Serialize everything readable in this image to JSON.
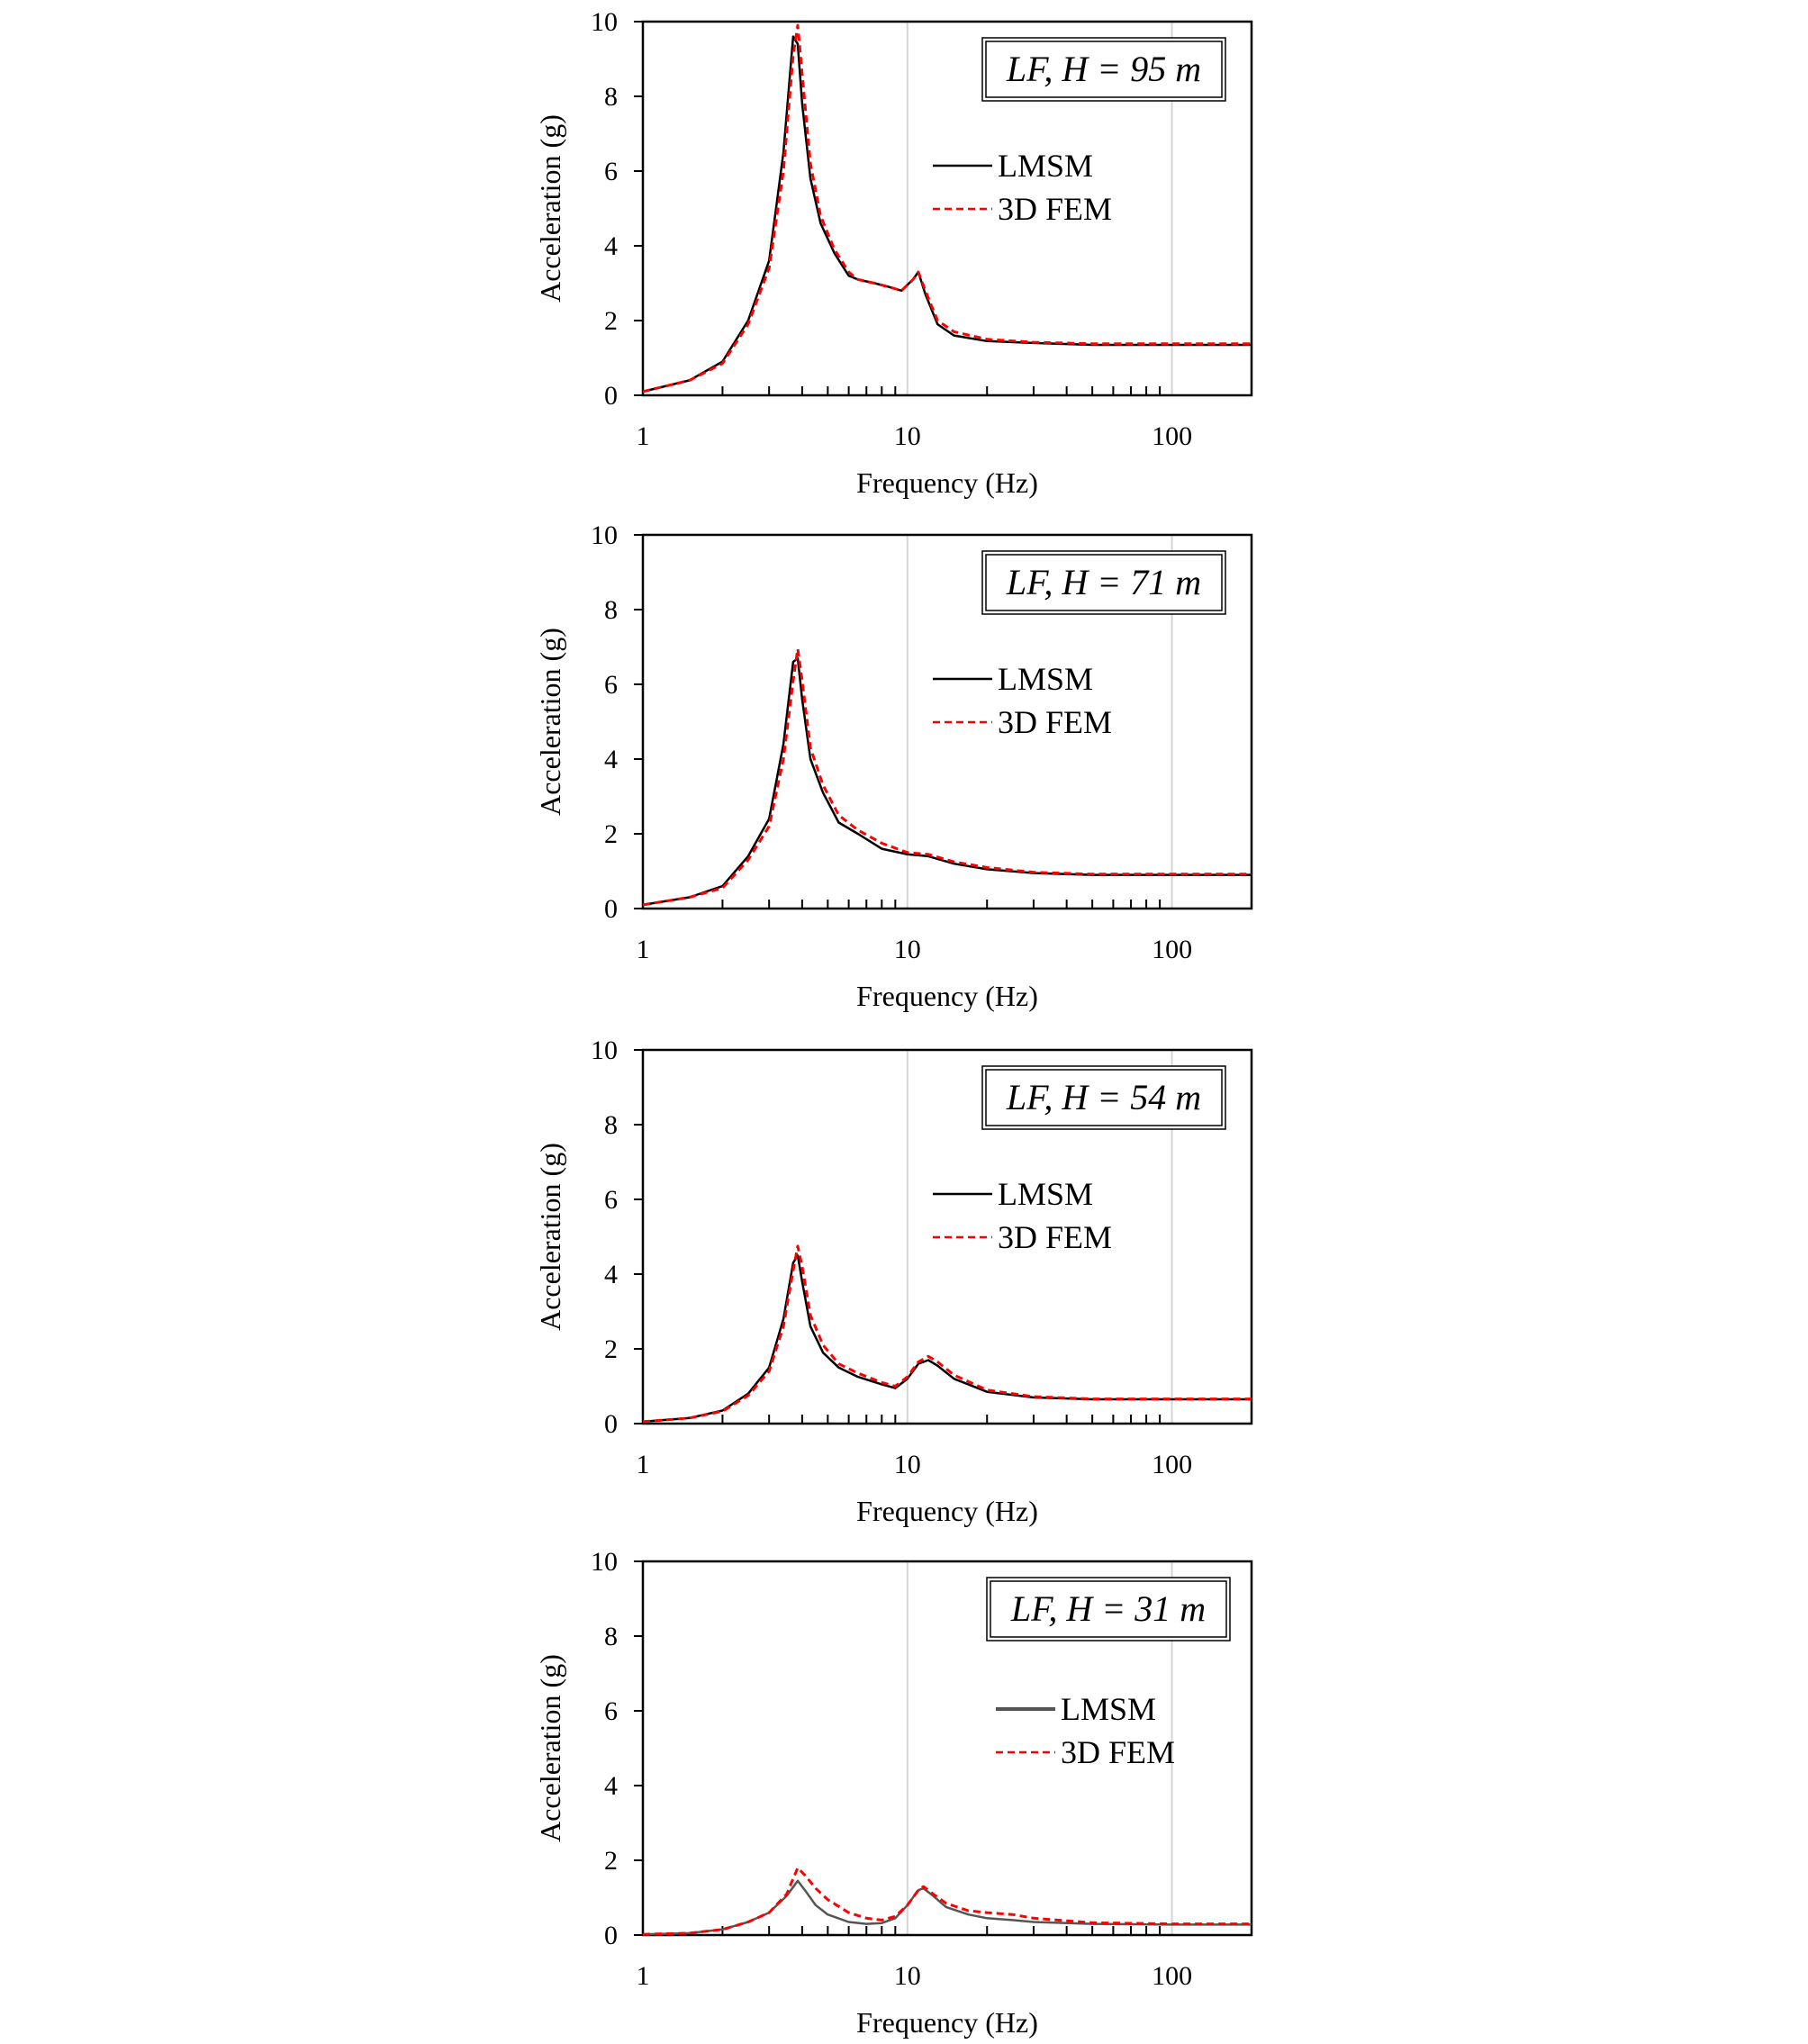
{
  "chart_data": [
    {
      "type": "line",
      "annotation": "LF, H = 95 m",
      "xlabel": "Frequency (Hz)",
      "ylabel": "Acceleration (g)",
      "xscale": "log",
      "xlim": [
        1,
        200
      ],
      "ylim": [
        0,
        10
      ],
      "xticks": [
        1,
        10,
        100
      ],
      "xtick_labels": [
        "1",
        "10",
        "100"
      ],
      "yticks": [
        0,
        2,
        4,
        6,
        8,
        10
      ],
      "ytick_labels": [
        "0",
        "2",
        "4",
        "6",
        "8",
        "10"
      ],
      "legend_position": "right-middle-upper",
      "series": [
        {
          "name": "LMSM",
          "color": "#000000",
          "style": "solid",
          "x": [
            1,
            1.5,
            2,
            2.5,
            3,
            3.4,
            3.7,
            3.85,
            4.0,
            4.3,
            4.7,
            5.3,
            6,
            6.5,
            7.5,
            8.5,
            9.5,
            10.5,
            11,
            11.7,
            13,
            15,
            20,
            30,
            50,
            100,
            200
          ],
          "y": [
            0.1,
            0.4,
            0.9,
            2.0,
            3.6,
            6.5,
            9.6,
            9.4,
            7.8,
            5.8,
            4.6,
            3.8,
            3.2,
            3.1,
            3.0,
            2.9,
            2.8,
            3.1,
            3.3,
            2.7,
            1.9,
            1.6,
            1.45,
            1.4,
            1.35,
            1.35,
            1.35
          ]
        },
        {
          "name": "3D FEM",
          "color": "#ff0000",
          "style": "dashed",
          "x": [
            1,
            1.5,
            2,
            2.5,
            3,
            3.4,
            3.7,
            3.85,
            4.0,
            4.3,
            4.7,
            5.3,
            6,
            6.5,
            7.5,
            8.5,
            9.5,
            10.5,
            11,
            11.7,
            13,
            15,
            20,
            30,
            50,
            100,
            200
          ],
          "y": [
            0.1,
            0.4,
            0.85,
            1.9,
            3.4,
            6.0,
            9.1,
            9.9,
            8.6,
            6.2,
            4.8,
            3.9,
            3.3,
            3.1,
            3.0,
            2.9,
            2.8,
            3.1,
            3.3,
            2.8,
            2.0,
            1.7,
            1.5,
            1.42,
            1.38,
            1.38,
            1.38
          ]
        }
      ]
    },
    {
      "type": "line",
      "annotation": "LF, H = 71 m",
      "xlabel": "Frequency (Hz)",
      "ylabel": "Acceleration (g)",
      "xscale": "log",
      "xlim": [
        1,
        200
      ],
      "ylim": [
        0,
        10
      ],
      "xticks": [
        1,
        10,
        100
      ],
      "xtick_labels": [
        "1",
        "10",
        "100"
      ],
      "yticks": [
        0,
        2,
        4,
        6,
        8,
        10
      ],
      "ytick_labels": [
        "0",
        "2",
        "4",
        "6",
        "8",
        "10"
      ],
      "legend_position": "right-middle-upper",
      "series": [
        {
          "name": "LMSM",
          "color": "#000000",
          "style": "solid",
          "x": [
            1,
            1.5,
            2,
            2.5,
            3,
            3.4,
            3.7,
            3.85,
            4.0,
            4.3,
            4.8,
            5.5,
            6.5,
            8,
            10,
            12,
            15,
            20,
            30,
            50,
            100,
            200
          ],
          "y": [
            0.1,
            0.3,
            0.6,
            1.4,
            2.4,
            4.4,
            6.6,
            6.7,
            5.6,
            4.0,
            3.1,
            2.3,
            2.0,
            1.6,
            1.45,
            1.4,
            1.2,
            1.05,
            0.95,
            0.9,
            0.9,
            0.9
          ]
        },
        {
          "name": "3D FEM",
          "color": "#ff0000",
          "style": "dashed",
          "x": [
            1,
            1.5,
            2,
            2.5,
            3,
            3.4,
            3.7,
            3.85,
            4.0,
            4.3,
            4.8,
            5.5,
            6.5,
            8,
            10,
            12,
            15,
            20,
            30,
            50,
            100,
            200
          ],
          "y": [
            0.1,
            0.3,
            0.55,
            1.3,
            2.2,
            4.0,
            6.1,
            6.95,
            6.1,
            4.3,
            3.3,
            2.5,
            2.1,
            1.75,
            1.5,
            1.45,
            1.25,
            1.1,
            0.97,
            0.92,
            0.92,
            0.92
          ]
        }
      ]
    },
    {
      "type": "line",
      "annotation": "LF, H = 54 m",
      "xlabel": "Frequency (Hz)",
      "ylabel": "Acceleration (g)",
      "xscale": "log",
      "xlim": [
        1,
        200
      ],
      "ylim": [
        0,
        10
      ],
      "xticks": [
        1,
        10,
        100
      ],
      "xtick_labels": [
        "1",
        "10",
        "100"
      ],
      "yticks": [
        0,
        2,
        4,
        6,
        8,
        10
      ],
      "ytick_labels": [
        "0",
        "2",
        "4",
        "6",
        "8",
        "10"
      ],
      "legend_position": "right-middle-upper",
      "series": [
        {
          "name": "LMSM",
          "color": "#000000",
          "style": "solid",
          "x": [
            1,
            1.5,
            2,
            2.5,
            3,
            3.4,
            3.7,
            3.85,
            4.0,
            4.3,
            4.8,
            5.5,
            6.5,
            8,
            9,
            10,
            11,
            12,
            13,
            15,
            20,
            30,
            50,
            100,
            200
          ],
          "y": [
            0.05,
            0.15,
            0.35,
            0.8,
            1.5,
            2.8,
            4.3,
            4.5,
            3.8,
            2.6,
            1.9,
            1.5,
            1.25,
            1.05,
            0.95,
            1.2,
            1.6,
            1.7,
            1.55,
            1.2,
            0.85,
            0.7,
            0.65,
            0.65,
            0.65
          ]
        },
        {
          "name": "3D FEM",
          "color": "#ff0000",
          "style": "dashed",
          "x": [
            1,
            1.5,
            2,
            2.5,
            3,
            3.4,
            3.7,
            3.85,
            4.0,
            4.3,
            4.8,
            5.5,
            6.5,
            8,
            9,
            10,
            11,
            12,
            13,
            15,
            20,
            30,
            50,
            100,
            200
          ],
          "y": [
            0.05,
            0.15,
            0.33,
            0.75,
            1.4,
            2.6,
            4.1,
            4.75,
            4.2,
            2.9,
            2.1,
            1.6,
            1.35,
            1.1,
            1.0,
            1.25,
            1.65,
            1.8,
            1.65,
            1.3,
            0.9,
            0.72,
            0.66,
            0.66,
            0.66
          ]
        }
      ]
    },
    {
      "type": "line",
      "annotation": "LF, H = 31 m",
      "xlabel": "Frequency (Hz)",
      "ylabel": "Acceleration (g)",
      "xscale": "log",
      "xlim": [
        1,
        200
      ],
      "ylim": [
        0,
        10
      ],
      "xticks": [
        1,
        10,
        100
      ],
      "xtick_labels": [
        "1",
        "10",
        "100"
      ],
      "yticks": [
        0,
        2,
        4,
        6,
        8,
        10
      ],
      "ytick_labels": [
        "0",
        "2",
        "4",
        "6",
        "8",
        "10"
      ],
      "legend_position": "right-middle-upper",
      "series": [
        {
          "name": "LMSM",
          "color": "#555555",
          "style": "solid",
          "x": [
            1,
            1.5,
            2,
            2.5,
            3,
            3.5,
            3.85,
            4.1,
            4.5,
            5,
            6,
            7,
            8,
            9,
            10,
            11,
            11.5,
            12.5,
            14,
            17,
            20,
            25,
            30,
            50,
            100,
            200
          ],
          "y": [
            0.02,
            0.05,
            0.15,
            0.35,
            0.6,
            1.05,
            1.45,
            1.2,
            0.8,
            0.55,
            0.35,
            0.3,
            0.32,
            0.45,
            0.8,
            1.2,
            1.25,
            1.05,
            0.75,
            0.55,
            0.45,
            0.4,
            0.35,
            0.3,
            0.28,
            0.28
          ]
        },
        {
          "name": "3D FEM",
          "color": "#ff0000",
          "style": "dashed",
          "x": [
            1,
            1.5,
            2,
            2.5,
            3,
            3.5,
            3.85,
            4.1,
            4.5,
            5,
            6,
            7,
            8,
            9,
            10,
            11,
            11.5,
            12.5,
            14,
            17,
            20,
            25,
            30,
            50,
            100,
            200
          ],
          "y": [
            0.02,
            0.05,
            0.15,
            0.35,
            0.6,
            1.1,
            1.8,
            1.6,
            1.25,
            0.95,
            0.6,
            0.45,
            0.4,
            0.5,
            0.8,
            1.2,
            1.3,
            1.1,
            0.85,
            0.65,
            0.6,
            0.55,
            0.45,
            0.33,
            0.3,
            0.3
          ]
        }
      ]
    }
  ]
}
